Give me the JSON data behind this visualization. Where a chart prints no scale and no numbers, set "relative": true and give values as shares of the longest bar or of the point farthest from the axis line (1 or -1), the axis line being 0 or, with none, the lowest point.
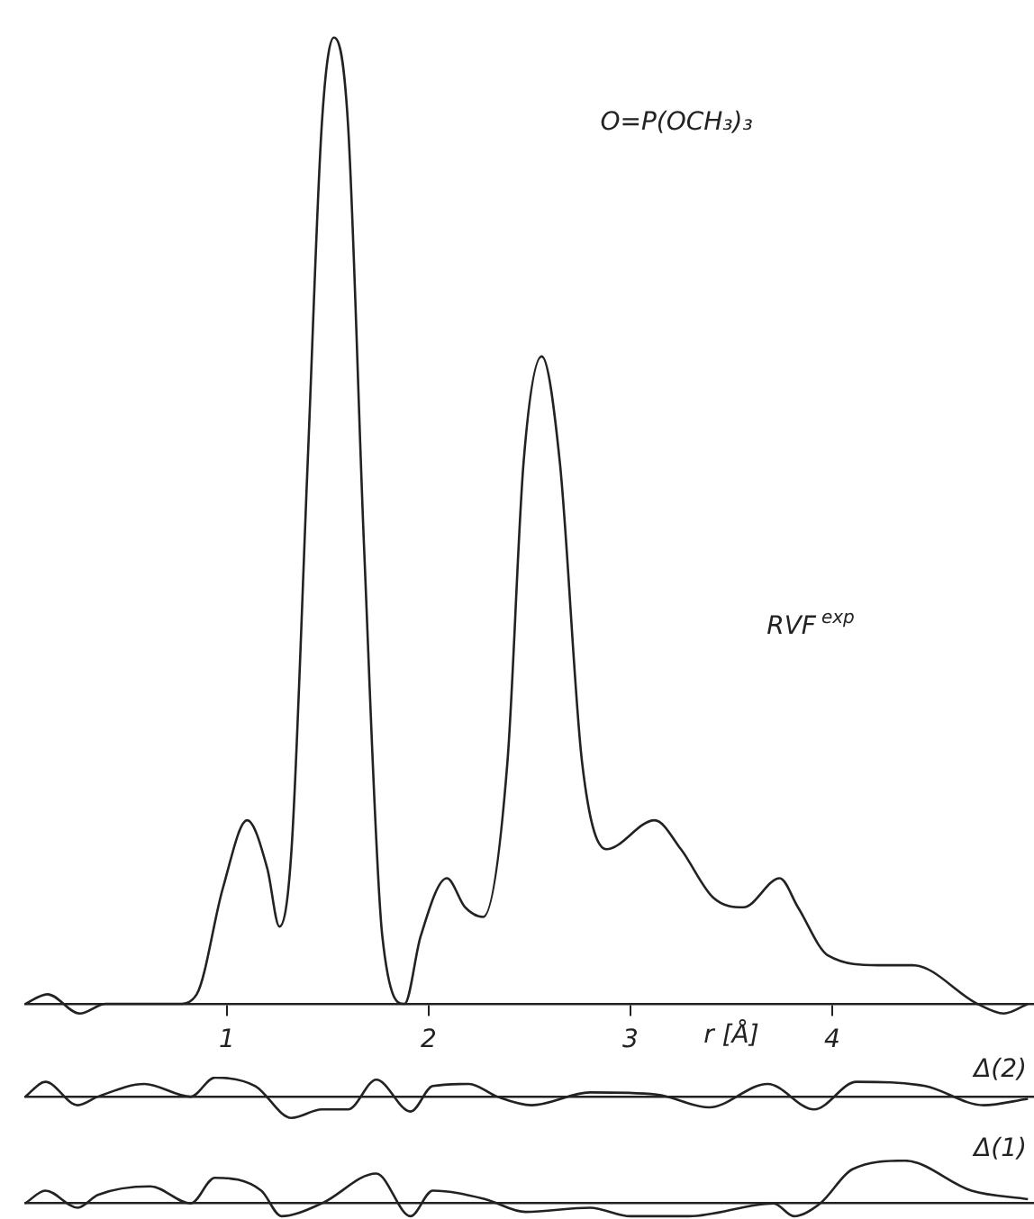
{
  "chart_data": [
    {
      "type": "line",
      "relative": true,
      "xlabel": "r [Å]",
      "annotations": [
        "O=P(OCH₃)₃"
      ],
      "xlim": [
        0,
        5
      ],
      "xticks": [
        1,
        2,
        3,
        4
      ],
      "tick_labels": "x",
      "grid": false,
      "legend": false,
      "marker": "none",
      "line_style": "solid",
      "x": [
        0,
        0.11,
        0.27,
        0.4,
        0.76,
        0.85,
        0.98,
        1.1,
        1.2,
        1.26,
        1.32,
        1.4,
        1.47,
        1.53,
        1.6,
        1.68,
        1.77,
        1.88,
        1.96,
        2.09,
        2.18,
        2.27,
        2.39,
        2.47,
        2.56,
        2.65,
        2.76,
        2.88,
        3.12,
        3.25,
        3.41,
        3.56,
        3.74,
        3.83,
        3.98,
        4.23,
        4.4,
        4.72,
        4.85,
        4.97
      ],
      "series": [
        {
          "name": "RVF$^{exp}$",
          "color": "#222222",
          "values": [
            0,
            0.01,
            -0.01,
            0,
            0,
            0.01,
            0.12,
            0.19,
            0.14,
            0.08,
            0.16,
            0.56,
            0.91,
            1,
            0.91,
            0.47,
            0.07,
            0,
            0.07,
            0.13,
            0.1,
            0.09,
            0.25,
            0.56,
            0.67,
            0.56,
            0.25,
            0.16,
            0.19,
            0.16,
            0.11,
            0.1,
            0.13,
            0.1,
            0.05,
            0.04,
            0.04,
            0,
            -0.01,
            0
          ]
        }
      ]
    },
    {
      "type": "line",
      "relative": true,
      "xlim": [
        0,
        5
      ],
      "tick_labels": false,
      "grid": false,
      "legend": false,
      "marker": "none",
      "line_style": "solid",
      "x": [
        0,
        0.1,
        0.26,
        0.36,
        0.59,
        0.82,
        0.94,
        1.14,
        1.32,
        1.47,
        1.6,
        1.74,
        1.91,
        2.02,
        2.2,
        2.34,
        2.51,
        2.8,
        3.13,
        3.39,
        3.68,
        3.91,
        4.12,
        4.46,
        4.75,
        4.97
      ],
      "series": [
        {
          "name": "Δ(2)",
          "color": "#222222",
          "values": [
            0,
            0.7,
            -0.4,
            0,
            0.6,
            0,
            0.9,
            0.5,
            -1,
            -0.6,
            -0.6,
            0.8,
            -0.7,
            0.5,
            0.6,
            0,
            -0.4,
            0.2,
            0.1,
            -0.5,
            0.6,
            -0.6,
            0.7,
            0.5,
            -0.4,
            -0.1
          ]
        }
      ]
    },
    {
      "type": "line",
      "relative": true,
      "xlim": [
        0,
        5
      ],
      "tick_labels": false,
      "grid": false,
      "legend": false,
      "marker": "none",
      "line_style": "solid",
      "x": [
        0,
        0.1,
        0.26,
        0.36,
        0.62,
        0.82,
        0.94,
        1.17,
        1.27,
        1.47,
        1.74,
        1.91,
        2.02,
        2.28,
        2.48,
        2.8,
        3.0,
        3.29,
        3.71,
        3.81,
        3.94,
        4.1,
        4.36,
        4.69,
        4.97
      ],
      "series": [
        {
          "name": "Δ(1)",
          "color": "#222222",
          "values": [
            0,
            0.3,
            -0.1,
            0.2,
            0.4,
            0,
            0.6,
            0.3,
            -0.3,
            0,
            0.7,
            -0.3,
            0.3,
            0.1,
            -0.2,
            -0.1,
            -0.3,
            -0.3,
            0,
            -0.3,
            0,
            0.8,
            1,
            0.3,
            0.1
          ]
        }
      ]
    }
  ]
}
